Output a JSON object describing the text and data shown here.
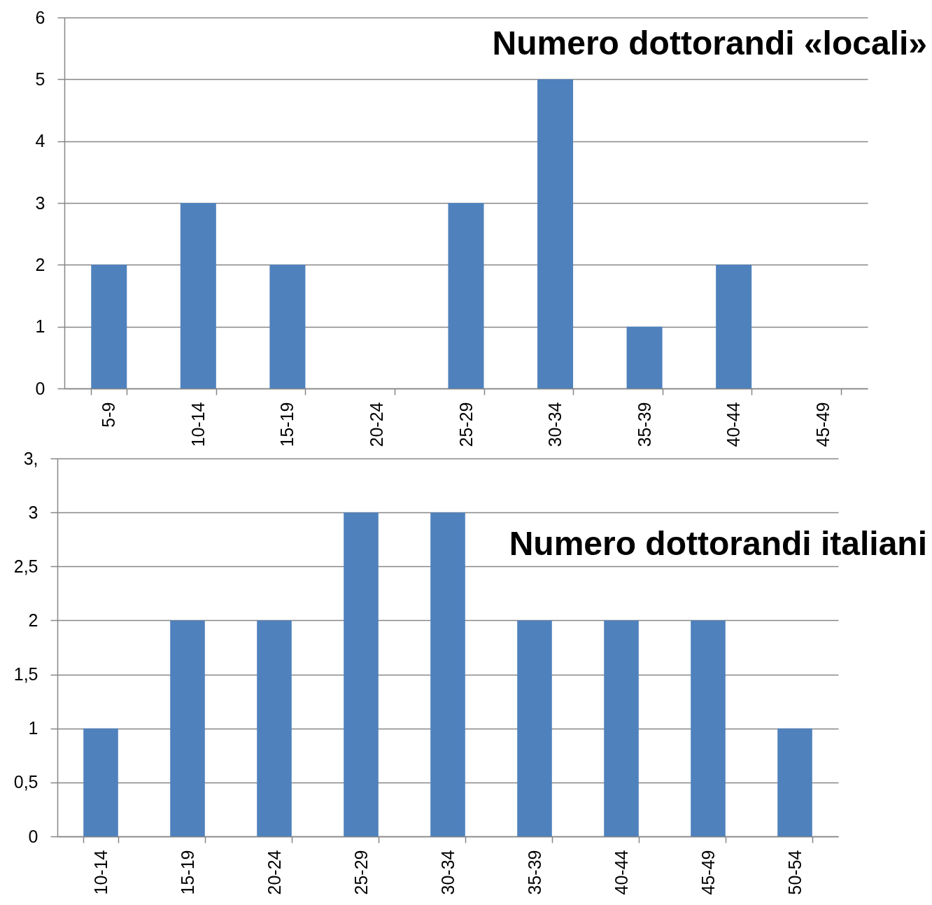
{
  "chart_data": [
    {
      "type": "bar",
      "title": "Numero dottorandi «locali»",
      "categories": [
        "5-9",
        "10-14",
        "15-19",
        "20-24",
        "25-29",
        "30-34",
        "35-39",
        "40-44",
        "45-49"
      ],
      "values": [
        2,
        3,
        2,
        0,
        3,
        5,
        1,
        2,
        0
      ],
      "color": "#4f81bd",
      "ylim": [
        0,
        6
      ],
      "yticks": [
        0,
        1,
        2,
        3,
        4,
        5,
        6
      ],
      "grid": "y"
    },
    {
      "type": "bar",
      "title": "Numero dottorandi italiani",
      "categories": [
        "10-14",
        "15-19",
        "20-24",
        "25-29",
        "30-34",
        "35-39",
        "40-44",
        "45-49",
        "50-54"
      ],
      "values": [
        1,
        2,
        2,
        3,
        3,
        2,
        2,
        2,
        1
      ],
      "color": "#4f81bd",
      "ylim": [
        0,
        3.5
      ],
      "yticks": [
        0,
        {
          "value": 0.5,
          "label": "0,5"
        },
        1,
        {
          "value": 1.5,
          "label": "1,5"
        },
        2,
        {
          "value": 2.5,
          "label": "2,5"
        },
        3,
        {
          "value": 3.5,
          "label": "3,"
        }
      ],
      "grid": "y"
    }
  ]
}
